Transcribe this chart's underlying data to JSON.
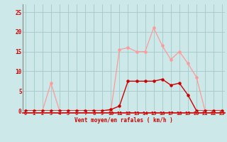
{
  "x": [
    0,
    1,
    2,
    3,
    4,
    5,
    6,
    7,
    8,
    9,
    10,
    11,
    12,
    13,
    14,
    15,
    16,
    17,
    18,
    19,
    20,
    21,
    22,
    23
  ],
  "rafales": [
    0,
    0,
    0,
    7,
    0,
    0,
    0,
    0,
    0,
    0,
    0,
    15.5,
    16,
    15,
    15,
    21,
    16.5,
    13,
    15,
    12,
    8.5,
    0,
    0,
    0
  ],
  "moyen": [
    0,
    0,
    0,
    0,
    0,
    0,
    0,
    0,
    0,
    0,
    0.3,
    1.2,
    7.5,
    7.5,
    7.5,
    7.5,
    8,
    6.5,
    7,
    4,
    0,
    0,
    0,
    0
  ],
  "bg_color": "#cce8e8",
  "grid_color": "#aacccc",
  "line_color_rafales": "#ff9999",
  "line_color_moyen": "#cc0000",
  "xlabel": "Vent moyen/en rafales ( km/h )",
  "yticks": [
    0,
    5,
    10,
    15,
    20,
    25
  ],
  "xticks": [
    0,
    1,
    2,
    3,
    4,
    5,
    6,
    7,
    8,
    9,
    10,
    11,
    12,
    13,
    14,
    15,
    16,
    17,
    18,
    19,
    20,
    21,
    22,
    23
  ],
  "ylim": [
    0,
    27
  ],
  "xlim": [
    -0.3,
    23.3
  ],
  "tick_color": "#cc0000",
  "spine_color": "#888888",
  "hline_color": "#cc0000",
  "hline_y": -0.5
}
